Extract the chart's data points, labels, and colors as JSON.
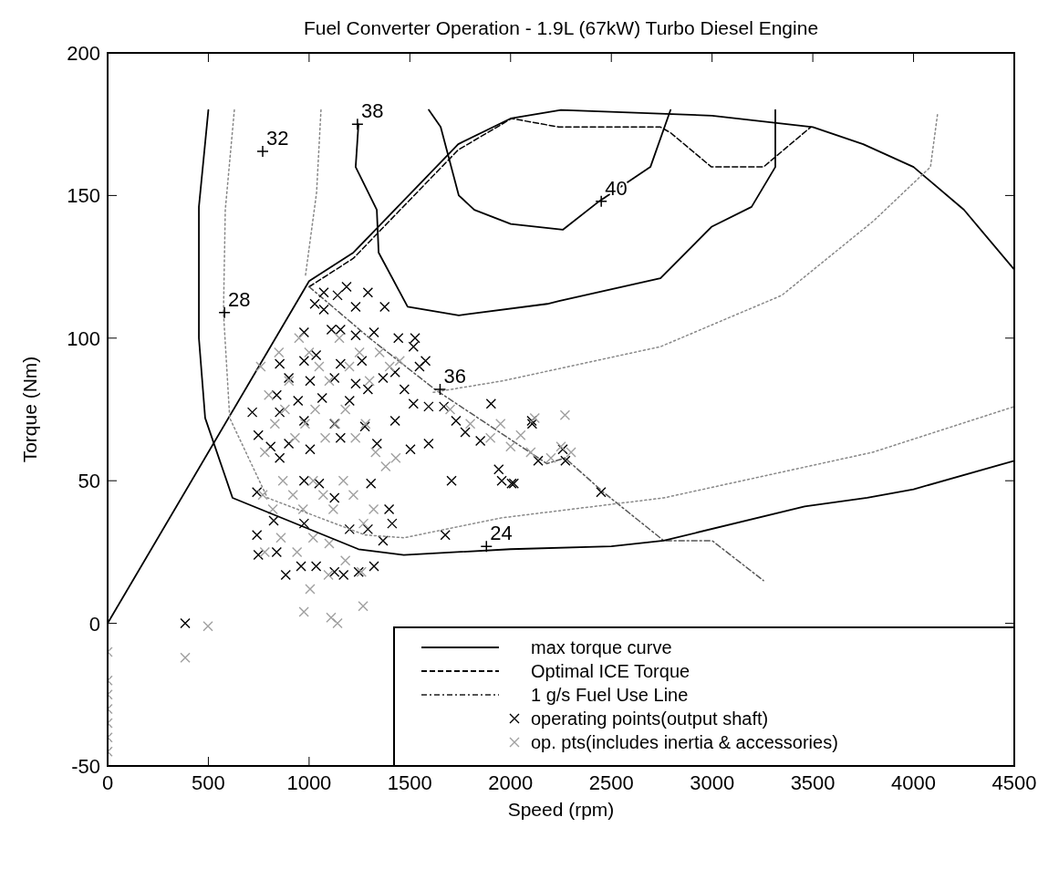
{
  "chart_data": {
    "type": "line",
    "title": "Fuel Converter Operation - 1.9L (67kW) Turbo Diesel Engine",
    "xlabel": "Speed (rpm)",
    "ylabel": "Torque (Nm)",
    "xlim": [
      0,
      4500
    ],
    "ylim": [
      -50,
      200
    ],
    "xticks": [
      0,
      500,
      1000,
      1500,
      2000,
      2500,
      3000,
      3500,
      4000,
      4500
    ],
    "yticks": [
      -50,
      0,
      50,
      100,
      150,
      200
    ],
    "grid": false,
    "legend": "bottom right",
    "series": [
      {
        "name": "max torque curve",
        "color": "#000000",
        "line_style": "solid",
        "x": [
          0,
          1000,
          1220,
          1740,
          2000,
          2250,
          3000,
          3500,
          3750,
          4000,
          4250,
          4500
        ],
        "values": [
          0,
          120,
          130,
          168,
          177,
          180,
          178,
          174,
          168,
          160,
          145,
          124
        ]
      },
      {
        "name": "Optimal ICE Torque",
        "color": "#000000",
        "line_style": "dashed",
        "x": [
          1000,
          1220,
          1740,
          2005,
          2240,
          2744,
          2794,
          2997,
          3255,
          3490
        ],
        "values": [
          118,
          128,
          166,
          177,
          174,
          174,
          172,
          160,
          160,
          174
        ]
      },
      {
        "name": "1 g/s Fuel Use Line",
        "color": "#555555",
        "line_style": "dashdot",
        "x": [
          1000,
          1300,
          1625,
          2180,
          2270,
          2460,
          2760,
          3000,
          3255
        ],
        "values": [
          118,
          100,
          82,
          56,
          58,
          46,
          29,
          29,
          15
        ]
      },
      {
        "name": "operating points(output shaft)",
        "type": "scatter",
        "color": "#000000",
        "marker": "cross",
        "x": [
          1073,
          1186,
          1292,
          1028,
          1073,
          1141,
          1231,
          1375,
          975,
          1111,
          1156,
          1231,
          1322,
          1443,
          1526,
          1518,
          1578,
          854,
          975,
          1035,
          1156,
          1262,
          1367,
          1427,
          1548,
          899,
          1005,
          1126,
          1231,
          1292,
          1473,
          839,
          945,
          1065,
          1201,
          1518,
          1593,
          1669,
          1903,
          2107,
          718,
          854,
          975,
          1126,
          1277,
          1427,
          1729,
          1775,
          1850,
          748,
          809,
          899,
          1005,
          1156,
          1337,
          1503,
          1593,
          1941,
          1956,
          2016,
          2137,
          1707,
          854,
          975,
          1050,
          1307,
          741,
          1126,
          1397,
          1412,
          1676,
          1367,
          741,
          824,
          975,
          1201,
          1292,
          748,
          839,
          960,
          1035,
          1126,
          1171,
          1246,
          1322,
          884,
          2105,
          2259,
          2272,
          2449,
          2005,
          385
        ],
        "values": [
          116,
          118,
          116,
          112,
          110,
          115,
          111,
          111,
          102,
          103,
          103,
          101,
          102,
          100,
          100,
          97,
          92,
          91,
          92,
          94,
          91,
          92,
          86,
          88,
          90,
          86,
          85,
          86,
          84,
          82,
          82,
          80,
          78,
          79,
          78,
          77,
          76,
          76,
          77,
          70,
          74,
          74,
          71,
          70,
          69,
          71,
          71,
          67,
          64,
          66,
          62,
          63,
          61,
          65,
          63,
          61,
          63,
          54,
          50,
          49,
          57,
          50,
          58,
          50,
          49,
          49,
          46,
          44,
          40,
          35,
          31,
          29,
          31,
          36,
          35,
          33,
          33,
          24,
          25,
          20,
          20,
          18,
          17,
          18,
          20,
          17,
          71,
          61,
          57,
          46,
          49,
          0
        ]
      },
      {
        "name": "op. pts(includes inertia & accessories)",
        "type": "scatter",
        "color": "#a0a0a0",
        "marker": "cross",
        "x": [
          760,
          800,
          850,
          900,
          950,
          1000,
          1050,
          1100,
          1150,
          1200,
          1250,
          1300,
          1350,
          1400,
          1450,
          780,
          830,
          880,
          930,
          980,
          1030,
          1080,
          1130,
          1180,
          1230,
          1280,
          1330,
          1380,
          1430,
          770,
          820,
          870,
          920,
          970,
          1020,
          1070,
          1120,
          1170,
          1220,
          1270,
          1320,
          780,
          860,
          940,
          1020,
          1100,
          1180,
          1260,
          1700,
          1800,
          1900,
          2000,
          2100,
          2200,
          2250,
          2300,
          2120,
          2270,
          1950,
          2050,
          385,
          498,
          0,
          0,
          0,
          0,
          0,
          0,
          0,
          974,
          1109,
          1141,
          1268,
          1005,
          1096
        ],
        "values": [
          90,
          80,
          95,
          85,
          100,
          95,
          90,
          85,
          100,
          90,
          95,
          85,
          95,
          90,
          92,
          60,
          70,
          75,
          65,
          70,
          75,
          65,
          70,
          75,
          65,
          70,
          60,
          55,
          58,
          45,
          40,
          50,
          45,
          40,
          50,
          45,
          40,
          50,
          45,
          35,
          40,
          25,
          30,
          25,
          30,
          28,
          22,
          18,
          75,
          70,
          65,
          62,
          60,
          58,
          62,
          60,
          72,
          73,
          70,
          66,
          -12,
          -1,
          -10,
          -20,
          -25,
          -30,
          -35,
          -40,
          -45,
          4,
          2,
          0,
          6,
          12,
          17
        ]
      },
      {
        "type": "line",
        "color": "#000000",
        "line_style": "solid",
        "x": [
          500,
          453,
          453,
          484,
          620,
          1245,
          1470,
          2000,
          2500,
          2760,
          3460,
          3770,
          4000,
          4500
        ],
        "values": [
          180,
          146,
          100,
          72,
          44,
          26,
          24,
          26,
          27,
          29,
          41,
          44,
          47,
          57
        ]
      },
      {
        "type": "line",
        "color": "#888888",
        "line_style": "dotted",
        "x": [
          629,
          584,
          575,
          606,
          793,
          1277,
          1471,
          1956,
          2761,
          3798,
          4500
        ],
        "values": [
          180,
          145,
          109,
          72,
          44,
          31,
          30,
          37,
          44,
          60,
          76
        ]
      },
      {
        "type": "line",
        "color": "#888888",
        "line_style": "dotted",
        "x": [
          1059,
          1037,
          982
        ],
        "values": [
          180,
          151,
          122
        ]
      },
      {
        "type": "line",
        "color": "#888888",
        "line_style": "dotted",
        "x": [
          1616,
          1960,
          2744,
          3346,
          3800,
          4084,
          4120
        ],
        "values": [
          81,
          85,
          97,
          115,
          141,
          160,
          179
        ]
      },
      {
        "type": "line",
        "color": "#000000",
        "line_style": "solid",
        "x": [
          1245,
          1231,
          1336,
          1345,
          1489,
          1743,
          2182,
          2240,
          2744,
          2997,
          3196,
          3314,
          3314
        ],
        "values": [
          175,
          160,
          145,
          130,
          111,
          108,
          112,
          113,
          121,
          139,
          146,
          160,
          180
        ]
      },
      {
        "type": "line",
        "color": "#000000",
        "line_style": "solid",
        "x": [
          1594,
          1653,
          1743,
          1820,
          2001,
          2259,
          2440,
          2694,
          2794
        ],
        "values": [
          180,
          174,
          150,
          145,
          140,
          138,
          148,
          160,
          180
        ]
      }
    ],
    "annotations": [
      {
        "text": "24",
        "x": 1880,
        "y": 27
      },
      {
        "text": "28",
        "x": 580,
        "y": 109
      },
      "32",
      {
        "text": "36",
        "x": 1650,
        "y": 82
      },
      {
        "text": "38",
        "x": 1240,
        "y": 175
      },
      {
        "text": "40",
        "x": 2450,
        "y": 148
      }
    ]
  }
}
